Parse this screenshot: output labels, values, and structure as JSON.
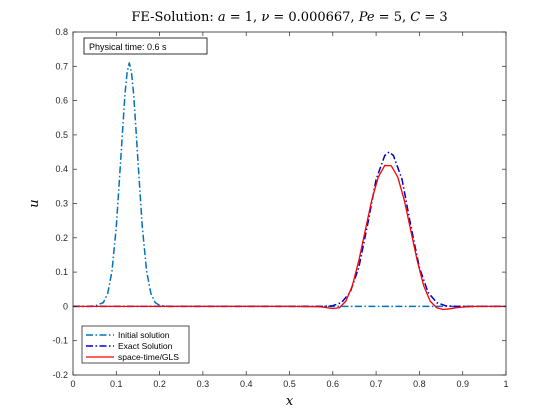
{
  "chart_data": {
    "type": "line",
    "title": "FE-Solution: a = 1,  ν = 0.000667,  Pe = 5,  C = 3",
    "title_parts": [
      {
        "text": "FE-Solution: ",
        "italic": false
      },
      {
        "text": "a",
        "italic": true
      },
      {
        "text": " = 1,  ",
        "italic": false
      },
      {
        "text": "ν",
        "italic": true
      },
      {
        "text": " = 0.000667,  ",
        "italic": false
      },
      {
        "text": "Pe",
        "italic": true
      },
      {
        "text": " = 5,  ",
        "italic": false
      },
      {
        "text": "C",
        "italic": true
      },
      {
        "text": " = 3",
        "italic": false
      }
    ],
    "xlabel": "x",
    "ylabel": "u",
    "xlim": [
      0,
      1
    ],
    "ylim": [
      -0.2,
      0.8
    ],
    "xticks": [
      0,
      0.1,
      0.2,
      0.3,
      0.4,
      0.5,
      0.6,
      0.7,
      0.8,
      0.9,
      1
    ],
    "xtick_labels": [
      "0",
      "0.1",
      "0.2",
      "0.3",
      "0.4",
      "0.5",
      "0.6",
      "0.7",
      "0.8",
      "0.9",
      "1"
    ],
    "yticks": [
      -0.2,
      -0.1,
      0,
      0.1,
      0.2,
      0.3,
      0.4,
      0.5,
      0.6,
      0.7,
      0.8
    ],
    "ytick_labels": [
      "-0.2",
      "-0.1",
      "0",
      "0.1",
      "0.2",
      "0.3",
      "0.4",
      "0.5",
      "0.6",
      "0.7",
      "0.8"
    ],
    "grid": false,
    "legend_position": "bottom-left",
    "annotation": {
      "text": "Physical time: 0.6  s",
      "position": "top-left"
    },
    "series": [
      {
        "name": "Initial solution",
        "color": "#0072BD",
        "style": "dash-dot",
        "x": [
          0,
          0.03,
          0.05,
          0.07,
          0.08,
          0.09,
          0.1,
          0.11,
          0.12,
          0.125,
          0.13,
          0.135,
          0.14,
          0.145,
          0.15,
          0.16,
          0.17,
          0.18,
          0.19,
          0.2,
          0.22,
          0.3,
          0.4,
          0.5,
          0.6,
          0.7,
          0.8,
          0.9,
          1
        ],
        "y": [
          0,
          0,
          0.001,
          0.011,
          0.037,
          0.103,
          0.232,
          0.424,
          0.619,
          0.683,
          0.71,
          0.683,
          0.619,
          0.525,
          0.424,
          0.232,
          0.103,
          0.037,
          0.011,
          0.003,
          0,
          0,
          0,
          0,
          0,
          0,
          0,
          0,
          1e-09
        ]
      },
      {
        "name": "Exact Solution",
        "color": "#0000CC",
        "style": "dash-dot",
        "x": [
          0,
          0.5,
          0.58,
          0.6,
          0.62,
          0.64,
          0.66,
          0.68,
          0.7,
          0.72,
          0.73,
          0.74,
          0.76,
          0.78,
          0.8,
          0.82,
          0.84,
          0.86,
          0.88,
          0.9,
          1
        ],
        "y": [
          0,
          0,
          0,
          0.002,
          0.011,
          0.041,
          0.113,
          0.236,
          0.37,
          0.44,
          0.45,
          0.44,
          0.37,
          0.236,
          0.113,
          0.041,
          0.011,
          0.002,
          0,
          0,
          0
        ]
      },
      {
        "name": "space-time/GLS",
        "color": "#FF0000",
        "style": "solid",
        "x": [
          0,
          0.5,
          0.57,
          0.6,
          0.615,
          0.63,
          0.645,
          0.66,
          0.675,
          0.69,
          0.705,
          0.72,
          0.735,
          0.75,
          0.765,
          0.78,
          0.795,
          0.81,
          0.825,
          0.84,
          0.855,
          0.87,
          0.885,
          0.9,
          0.93,
          1
        ],
        "y": [
          0,
          0,
          -0.001,
          -0.006,
          -0.004,
          0.015,
          0.06,
          0.133,
          0.222,
          0.31,
          0.377,
          0.411,
          0.41,
          0.377,
          0.31,
          0.222,
          0.133,
          0.06,
          0.015,
          -0.004,
          -0.009,
          -0.007,
          -0.004,
          -0.002,
          0,
          0
        ]
      }
    ]
  }
}
